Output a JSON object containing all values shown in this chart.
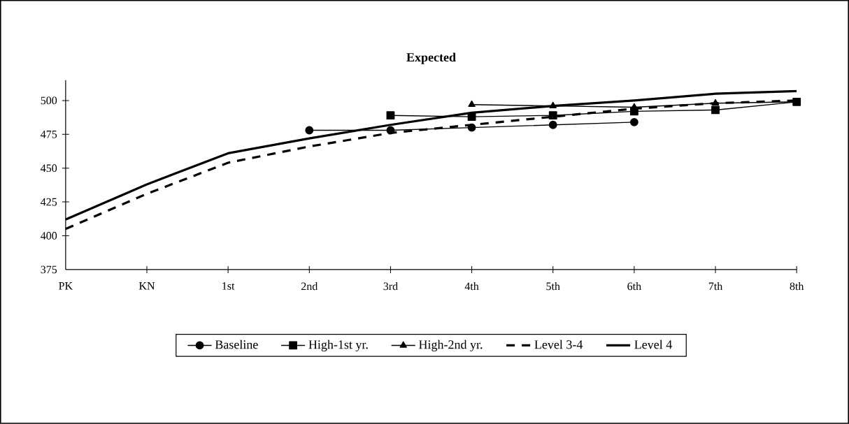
{
  "chart_data": {
    "type": "line",
    "title": "Expected",
    "categories": [
      "PK",
      "KN",
      "1st",
      "2nd",
      "3rd",
      "4th",
      "5th",
      "6th",
      "7th",
      "8th"
    ],
    "series": [
      {
        "name": "Baseline",
        "color": "#000000",
        "marker": "circle",
        "line_style": "solid",
        "values": [
          null,
          null,
          null,
          478,
          478,
          480,
          482,
          484,
          null,
          null
        ]
      },
      {
        "name": "High-1st yr.",
        "color": "#000000",
        "marker": "square",
        "line_style": "solid",
        "values": [
          null,
          null,
          null,
          null,
          489,
          488,
          489,
          492,
          493,
          499
        ]
      },
      {
        "name": "High-2nd yr.",
        "color": "#000000",
        "marker": "triangle",
        "line_style": "solid",
        "values": [
          null,
          null,
          null,
          null,
          null,
          497,
          496,
          495,
          498,
          499
        ]
      },
      {
        "name": "Level 3-4",
        "color": "#000000",
        "marker": "none",
        "line_style": "dashed",
        "values": [
          405,
          431,
          454,
          466,
          476,
          482,
          488,
          494,
          498,
          500
        ]
      },
      {
        "name": "Level 4",
        "color": "#000000",
        "marker": "none",
        "line_style": "solid",
        "values": [
          412,
          438,
          461,
          472,
          482,
          491,
          496,
          500,
          505,
          507
        ]
      }
    ],
    "ylim": [
      375,
      515
    ],
    "yticks": [
      375,
      400,
      425,
      450,
      475,
      500
    ],
    "grid": false,
    "legend": "bottom"
  }
}
